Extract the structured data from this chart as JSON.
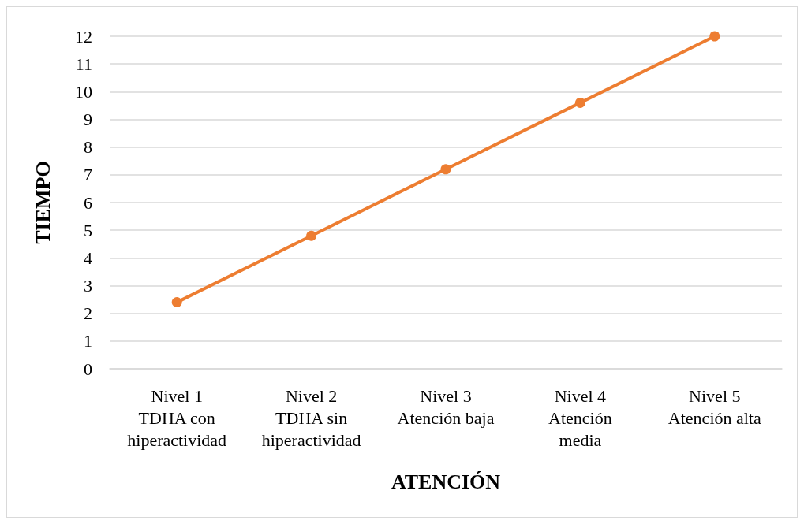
{
  "chart_data": {
    "type": "line",
    "categories": [
      "Nivel 1\nTDHA con\nhiperactividad",
      "Nivel 2\nTDHA sin\nhiperactividad",
      "Nivel 3\nAtención baja",
      "Nivel 4\nAtención\nmedia",
      "Nivel 5\nAtención alta"
    ],
    "series": [
      {
        "color": "#ed7d31",
        "values": [
          2.4,
          4.8,
          7.2,
          9.6,
          12
        ]
      }
    ],
    "xlabel": "ATENCIÓN",
    "ylabel": "TIEMPO",
    "ylim": [
      0,
      12
    ],
    "yticks": [
      0,
      1,
      2,
      3,
      4,
      5,
      6,
      7,
      8,
      9,
      10,
      11,
      12
    ],
    "grid": "y",
    "marker": "circle",
    "line_style": "solid"
  }
}
